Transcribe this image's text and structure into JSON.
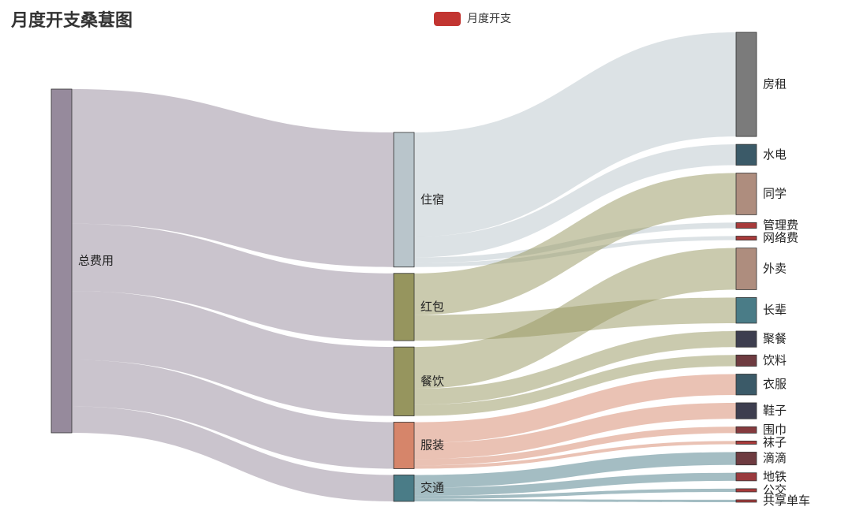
{
  "chart_data": {
    "type": "sankey",
    "title": "月度开支桑葚图",
    "legend": {
      "name": "月度开支",
      "color": "#c23531"
    },
    "nodes": [
      {
        "name": "总费用",
        "color": "#968a9c"
      },
      {
        "name": "住宿",
        "color": "#b9c5cb"
      },
      {
        "name": "红包",
        "color": "#96955e"
      },
      {
        "name": "餐饮",
        "color": "#96955e"
      },
      {
        "name": "服装",
        "color": "#d6856a"
      },
      {
        "name": "交通",
        "color": "#4a7c87"
      },
      {
        "name": "房租",
        "color": "#7b7b7b"
      },
      {
        "name": "水电",
        "color": "#3b5a68"
      },
      {
        "name": "同学",
        "color": "#ae8d7e"
      },
      {
        "name": "管理费",
        "color": "#a83a3a"
      },
      {
        "name": "网络费",
        "color": "#a83a3a"
      },
      {
        "name": "外卖",
        "color": "#ae8d7e"
      },
      {
        "name": "长辈",
        "color": "#4a7c87"
      },
      {
        "name": "聚餐",
        "color": "#3d3e4f"
      },
      {
        "name": "饮料",
        "color": "#6e3b40"
      },
      {
        "name": "衣服",
        "color": "#3b5a68"
      },
      {
        "name": "鞋子",
        "color": "#3d3e4f"
      },
      {
        "name": "围巾",
        "color": "#853a3e"
      },
      {
        "name": "袜子",
        "color": "#a83a3a"
      },
      {
        "name": "滴滴",
        "color": "#6e3b40"
      },
      {
        "name": "地铁",
        "color": "#9a3a3e"
      },
      {
        "name": "公交",
        "color": "#a83a3a"
      },
      {
        "name": "共享单车",
        "color": "#a83a3a"
      }
    ],
    "links": [
      {
        "source": "总费用",
        "target": "住宿",
        "value": 1680
      },
      {
        "source": "总费用",
        "target": "红包",
        "value": 840
      },
      {
        "source": "总费用",
        "target": "餐饮",
        "value": 860
      },
      {
        "source": "总费用",
        "target": "服装",
        "value": 580
      },
      {
        "source": "总费用",
        "target": "交通",
        "value": 330
      },
      {
        "source": "住宿",
        "target": "房租",
        "value": 1300
      },
      {
        "source": "住宿",
        "target": "水电",
        "value": 260
      },
      {
        "source": "住宿",
        "target": "管理费",
        "value": 70
      },
      {
        "source": "住宿",
        "target": "网络费",
        "value": 50
      },
      {
        "source": "红包",
        "target": "同学",
        "value": 520
      },
      {
        "source": "红包",
        "target": "长辈",
        "value": 320
      },
      {
        "source": "餐饮",
        "target": "外卖",
        "value": 520
      },
      {
        "source": "餐饮",
        "target": "聚餐",
        "value": 200
      },
      {
        "source": "餐饮",
        "target": "饮料",
        "value": 140
      },
      {
        "source": "服装",
        "target": "衣服",
        "value": 260
      },
      {
        "source": "服装",
        "target": "鞋子",
        "value": 200
      },
      {
        "source": "服装",
        "target": "围巾",
        "value": 80
      },
      {
        "source": "服装",
        "target": "袜子",
        "value": 40
      },
      {
        "source": "交通",
        "target": "滴滴",
        "value": 160
      },
      {
        "source": "交通",
        "target": "地铁",
        "value": 100
      },
      {
        "source": "交通",
        "target": "公交",
        "value": 40
      },
      {
        "source": "交通",
        "target": "共享单车",
        "value": 30
      }
    ]
  }
}
